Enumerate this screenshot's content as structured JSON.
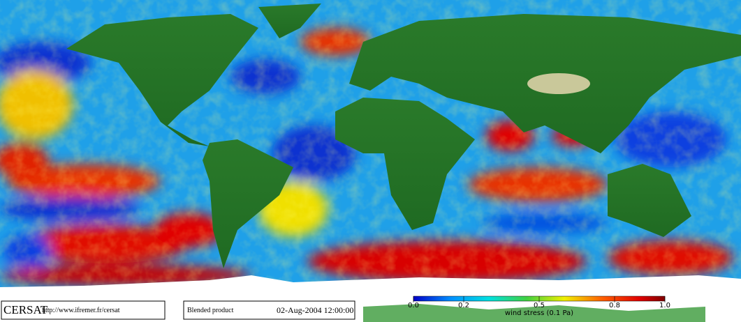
{
  "footer": {
    "logo": "CERSAT",
    "url": "http://www.ifremer.fr/cersat",
    "product": "Blended product",
    "date": "02-Aug-2004 12:00:00"
  },
  "colorbar": {
    "label": "wind stress (0.1 Pa)",
    "lim": [
      0,
      1
    ],
    "ticks": [
      {
        "value": 0,
        "label": "0.0"
      },
      0.2,
      0.5,
      0.8,
      {
        "value": 1,
        "label": "1.0"
      }
    ]
  }
}
